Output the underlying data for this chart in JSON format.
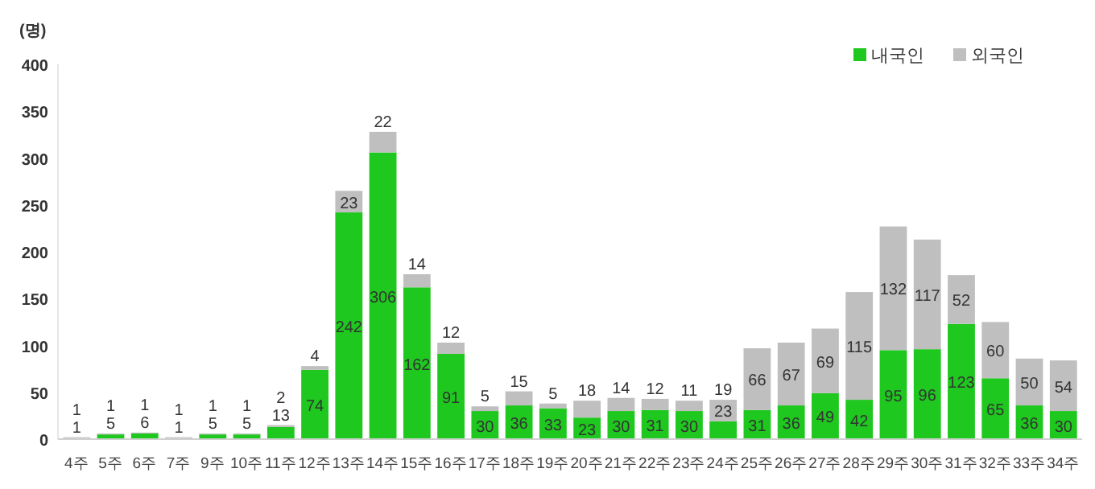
{
  "chart_data": {
    "type": "bar",
    "stacked": true,
    "ylabel": "(명)",
    "categories": [
      "4주",
      "5주",
      "6주",
      "7주",
      "9주",
      "10주",
      "11주",
      "12주",
      "13주",
      "14주",
      "15주",
      "16주",
      "17주",
      "18주",
      "19주",
      "20주",
      "21주",
      "22주",
      "23주",
      "24주",
      "25주",
      "26주",
      "27주",
      "28주",
      "29주",
      "30주",
      "31주",
      "32주",
      "33주",
      "34주"
    ],
    "series": [
      {
        "name": "내국인",
        "color": "#1ec81e",
        "values": [
          1,
          5,
          6,
          1,
          5,
          5,
          13,
          74,
          242,
          306,
          162,
          91,
          30,
          36,
          33,
          23,
          30,
          31,
          30,
          19,
          31,
          36,
          49,
          42,
          95,
          96,
          123,
          65,
          36,
          30
        ]
      },
      {
        "name": "외국인",
        "color": "#bfbfbf",
        "values": [
          1,
          1,
          1,
          1,
          1,
          1,
          2,
          4,
          23,
          22,
          14,
          12,
          5,
          15,
          5,
          18,
          14,
          12,
          11,
          23,
          66,
          67,
          69,
          115,
          132,
          117,
          52,
          60,
          50,
          54
        ]
      }
    ],
    "ylim": [
      0,
      400
    ],
    "yticks": [
      0,
      50,
      100,
      150,
      200,
      250,
      300,
      350,
      400
    ],
    "grid": false,
    "legend": "top right",
    "data_labels": true
  }
}
